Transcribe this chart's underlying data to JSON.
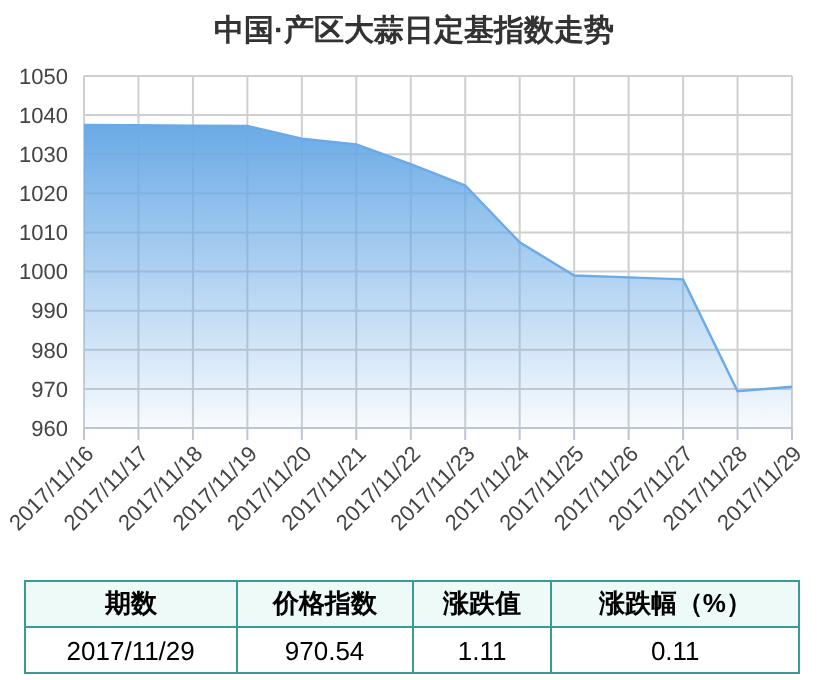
{
  "chart_data": {
    "type": "area",
    "title": "中国·产区大蒜日定基指数走势",
    "categories": [
      "2017/11/16",
      "2017/11/17",
      "2017/11/18",
      "2017/11/19",
      "2017/11/20",
      "2017/11/21",
      "2017/11/22",
      "2017/11/23",
      "2017/11/24",
      "2017/11/25",
      "2017/11/26",
      "2017/11/27",
      "2017/11/28",
      "2017/11/29"
    ],
    "series": [
      {
        "color": "#6aaae6",
        "values": [
          1037.5,
          1037.4,
          1037.3,
          1037.2,
          1034,
          1032.5,
          1027.5,
          1022,
          1007.5,
          999,
          998.5,
          998,
          969.4,
          970.54
        ]
      }
    ],
    "ylim": [
      960,
      1050
    ],
    "yticks": [
      960,
      970,
      980,
      990,
      1000,
      1010,
      1020,
      1030,
      1040,
      1050
    ],
    "grid": true,
    "legend": false,
    "annotations": [
      "期数",
      "价格指数",
      "涨跌值",
      "涨跌幅（%）",
      "2017/11/29",
      "970.54",
      "1.11",
      "0.11"
    ]
  }
}
